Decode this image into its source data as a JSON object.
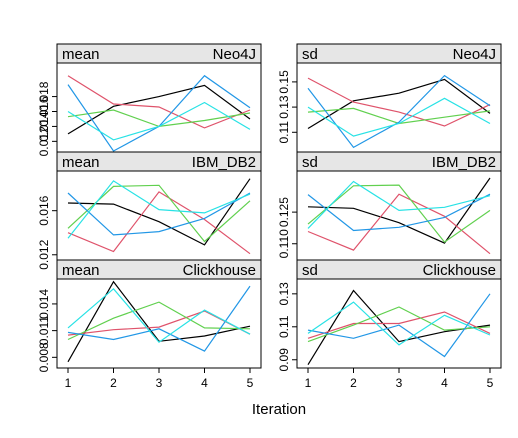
{
  "chart_data": {
    "type": "line",
    "xlabel": "Iteration",
    "x": [
      1,
      2,
      3,
      4,
      5
    ],
    "series_colors": [
      "#000000",
      "#DF536B",
      "#61D04F",
      "#2297E6",
      "#28E2E5"
    ],
    "panels": [
      {
        "stat": "mean",
        "db": "Neo4J",
        "ylim": [
          0.0095,
          0.0225
        ],
        "yticks": [
          0.012,
          0.014,
          0.016,
          0.018
        ],
        "ytick_labels": [
          "0.012",
          "0.014",
          "0.016",
          "0.018"
        ],
        "series": [
          {
            "values": [
              0.013,
              0.0167,
              0.018,
              0.0195,
              0.015
            ]
          },
          {
            "values": [
              0.0208,
              0.017,
              0.0166,
              0.0138,
              0.0162
            ]
          },
          {
            "values": [
              0.0153,
              0.0162,
              0.014,
              0.0148,
              0.0158
            ]
          },
          {
            "values": [
              0.0196,
              0.0107,
              0.014,
              0.0208,
              0.0165
            ]
          },
          {
            "values": [
              0.016,
              0.0122,
              0.014,
              0.0172,
              0.0136
            ]
          }
        ]
      },
      {
        "stat": "sd",
        "db": "Neo4J",
        "ylim": [
          0.088,
          0.165
        ],
        "yticks": [
          0.11,
          0.13,
          0.15
        ],
        "ytick_labels": [
          "0.11",
          "0.13",
          "0.15"
        ],
        "series": [
          {
            "values": [
              0.113,
              0.135,
              0.141,
              0.152,
              0.125
            ]
          },
          {
            "values": [
              0.153,
              0.134,
              0.126,
              0.115,
              0.132
            ]
          },
          {
            "values": [
              0.126,
              0.129,
              0.117,
              0.122,
              0.127
            ]
          },
          {
            "values": [
              0.145,
              0.098,
              0.118,
              0.155,
              0.131
            ]
          },
          {
            "values": [
              0.13,
              0.107,
              0.117,
              0.137,
              0.117
            ]
          }
        ]
      },
      {
        "stat": "mean",
        "db": "IBM_DB2",
        "ylim": [
          0.0108,
          0.0196
        ],
        "yticks": [
          0.012,
          0.016
        ],
        "ytick_labels": [
          "0.012",
          "0.016"
        ],
        "series": [
          {
            "values": [
              0.0167,
              0.0166,
              0.015,
              0.0129,
              0.0189
            ]
          },
          {
            "values": [
              0.014,
              0.0123,
              0.0177,
              0.0152,
              0.0121
            ]
          },
          {
            "values": [
              0.0144,
              0.0182,
              0.0183,
              0.0132,
              0.0169
            ]
          },
          {
            "values": [
              0.0176,
              0.0138,
              0.0141,
              0.0153,
              0.0176
            ]
          },
          {
            "values": [
              0.0135,
              0.0187,
              0.0161,
              0.0158,
              0.0175
            ]
          }
        ]
      },
      {
        "stat": "sd",
        "db": "IBM_DB2",
        "ylim": [
          0.0985,
          0.1445
        ],
        "yticks": [
          0.11,
          0.125
        ],
        "ytick_labels": [
          "0.110",
          "0.125"
        ],
        "series": [
          {
            "values": [
              0.1275,
              0.1268,
              0.12,
              0.1103,
              0.1412
            ]
          },
          {
            "values": [
              0.1158,
              0.107,
              0.1335,
              0.123,
              0.1053
            ]
          },
          {
            "values": [
              0.1193,
              0.1375,
              0.1378,
              0.1108,
              0.1258
            ]
          },
          {
            "values": [
              0.1333,
              0.1163,
              0.1178,
              0.1225,
              0.1335
            ]
          },
          {
            "values": [
              0.1173,
              0.1395,
              0.1258,
              0.1273,
              0.1328
            ]
          }
        ]
      },
      {
        "stat": "mean",
        "db": "Clickhouse",
        "ylim": [
          0.0068,
          0.0168
        ],
        "yticks": [
          0.008,
          0.011,
          0.014
        ],
        "ytick_labels": [
          "0.008",
          "0.011",
          "0.014"
        ],
        "series": [
          {
            "values": [
              0.0075,
              0.0165,
              0.0098,
              0.0104,
              0.0115
            ]
          },
          {
            "values": [
              0.0105,
              0.0111,
              0.0114,
              0.0132,
              0.0106
            ]
          },
          {
            "values": [
              0.01,
              0.0124,
              0.0142,
              0.0113,
              0.0112
            ]
          },
          {
            "values": [
              0.0108,
              0.01,
              0.0112,
              0.0087,
              0.016
            ]
          },
          {
            "values": [
              0.0113,
              0.0157,
              0.0097,
              0.0133,
              0.0106
            ]
          }
        ]
      },
      {
        "stat": "sd",
        "db": "Clickhouse",
        "ylim": [
          0.085,
          0.139
        ],
        "yticks": [
          0.09,
          0.11,
          0.13
        ],
        "ytick_labels": [
          "0.09",
          "0.11",
          "0.13"
        ],
        "series": [
          {
            "values": [
              0.087,
              0.132,
              0.101,
              0.107,
              0.111
            ]
          },
          {
            "values": [
              0.103,
              0.112,
              0.112,
              0.119,
              0.106
            ]
          },
          {
            "values": [
              0.101,
              0.111,
              0.122,
              0.108,
              0.11
            ]
          },
          {
            "values": [
              0.108,
              0.103,
              0.111,
              0.092,
              0.13
            ]
          },
          {
            "values": [
              0.106,
              0.125,
              0.099,
              0.117,
              0.105
            ]
          }
        ]
      }
    ]
  }
}
